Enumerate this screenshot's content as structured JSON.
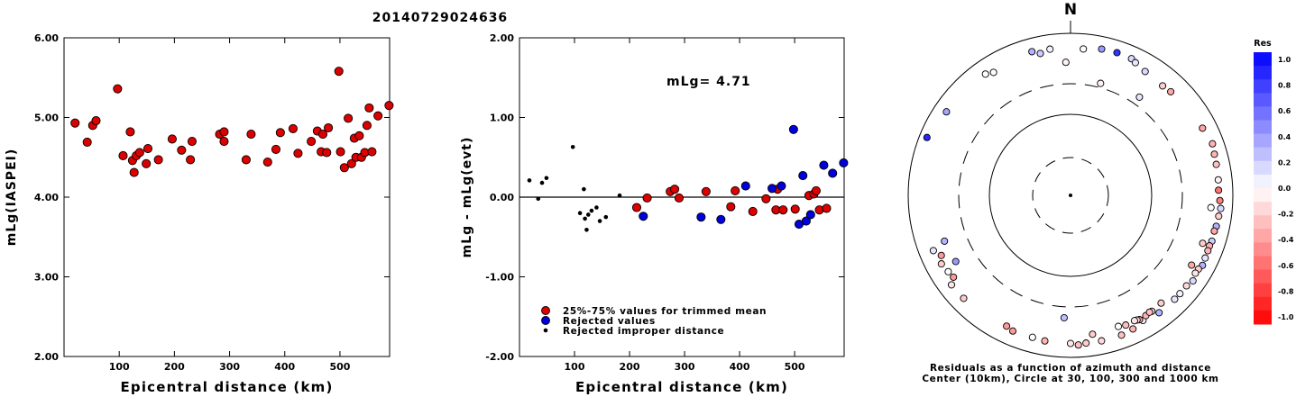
{
  "event_id": "20140729024636",
  "colors": {
    "red": "#dd0000",
    "blue": "#0000dd",
    "black": "#000000"
  },
  "chart_data": [
    {
      "type": "scatter",
      "xlabel": "Epicentral distance (km)",
      "ylabel": "mLg(IASPEI)",
      "xlim": [
        0,
        590
      ],
      "ylim": [
        2.0,
        6.0
      ],
      "x_ticks": [
        "100",
        "200",
        "300",
        "400",
        "500"
      ],
      "y_ticks": [
        "2.00",
        "3.00",
        "4.00",
        "5.00",
        "6.00"
      ],
      "series": [
        {
          "color": "red",
          "points": [
            [
              20,
              4.93
            ],
            [
              42,
              4.69
            ],
            [
              52,
              4.9
            ],
            [
              58,
              4.96
            ],
            [
              97,
              5.36
            ],
            [
              107,
              4.52
            ],
            [
              120,
              4.82
            ],
            [
              124,
              4.46
            ],
            [
              127,
              4.31
            ],
            [
              131,
              4.52
            ],
            [
              137,
              4.56
            ],
            [
              149,
              4.42
            ],
            [
              152,
              4.61
            ],
            [
              171,
              4.47
            ],
            [
              196,
              4.73
            ],
            [
              213,
              4.59
            ],
            [
              229,
              4.47
            ],
            [
              232,
              4.7
            ],
            [
              282,
              4.79
            ],
            [
              290,
              4.7
            ],
            [
              290,
              4.82
            ],
            [
              330,
              4.47
            ],
            [
              339,
              4.79
            ],
            [
              369,
              4.44
            ],
            [
              384,
              4.6
            ],
            [
              392,
              4.81
            ],
            [
              415,
              4.86
            ],
            [
              424,
              4.55
            ],
            [
              448,
              4.7
            ],
            [
              459,
              4.83
            ],
            [
              466,
              4.57
            ],
            [
              469,
              4.79
            ],
            [
              476,
              4.56
            ],
            [
              479,
              4.87
            ],
            [
              498,
              5.58
            ],
            [
              501,
              4.57
            ],
            [
              508,
              4.37
            ],
            [
              515,
              4.99
            ],
            [
              521,
              4.42
            ],
            [
              526,
              4.74
            ],
            [
              529,
              4.5
            ],
            [
              535,
              4.77
            ],
            [
              539,
              4.5
            ],
            [
              545,
              4.56
            ],
            [
              549,
              4.9
            ],
            [
              553,
              5.12
            ],
            [
              558,
              4.57
            ],
            [
              569,
              5.02
            ],
            [
              589,
              5.15
            ]
          ]
        }
      ]
    },
    {
      "type": "scatter",
      "xlabel": "Epicentral distance (km)",
      "ylabel": "mLg - mLg(evt)",
      "annotation": "mLg= 4.71",
      "xlim": [
        0,
        590
      ],
      "ylim": [
        -2.0,
        2.0
      ],
      "x_ticks": [
        "100",
        "200",
        "300",
        "400",
        "500"
      ],
      "y_ticks": [
        "-2.00",
        "-1.00",
        "0.00",
        "1.00",
        "2.00"
      ],
      "reference_line": 0.0,
      "legend": [
        {
          "label": "25%-75% values for trimmed mean",
          "color": "red"
        },
        {
          "label": "Rejected values",
          "color": "blue"
        },
        {
          "label": "Rejected improper distance",
          "color": "black"
        }
      ],
      "series": [
        {
          "color": "red",
          "size": "large",
          "points": [
            [
              213,
              -0.13
            ],
            [
              232,
              -0.01
            ],
            [
              274,
              0.07
            ],
            [
              282,
              0.1
            ],
            [
              290,
              -0.01
            ],
            [
              339,
              0.07
            ],
            [
              384,
              -0.12
            ],
            [
              392,
              0.08
            ],
            [
              424,
              -0.18
            ],
            [
              448,
              -0.02
            ],
            [
              466,
              -0.16
            ],
            [
              469,
              0.1
            ],
            [
              479,
              -0.16
            ],
            [
              501,
              -0.15
            ],
            [
              526,
              0.02
            ],
            [
              535,
              0.04
            ],
            [
              539,
              0.08
            ],
            [
              545,
              -0.16
            ],
            [
              558,
              -0.14
            ]
          ]
        },
        {
          "color": "blue",
          "size": "large",
          "points": [
            [
              225,
              -0.24
            ],
            [
              330,
              -0.25
            ],
            [
              366,
              -0.28
            ],
            [
              411,
              0.14
            ],
            [
              459,
              0.11
            ],
            [
              476,
              0.14
            ],
            [
              498,
              0.85
            ],
            [
              508,
              -0.34
            ],
            [
              515,
              0.27
            ],
            [
              521,
              -0.3
            ],
            [
              529,
              -0.22
            ],
            [
              553,
              0.4
            ],
            [
              569,
              0.3
            ],
            [
              589,
              0.43
            ]
          ]
        },
        {
          "color": "black",
          "size": "small",
          "points": [
            [
              18,
              0.21
            ],
            [
              34,
              -0.02
            ],
            [
              41,
              0.18
            ],
            [
              49,
              0.24
            ],
            [
              97,
              0.63
            ],
            [
              110,
              -0.2
            ],
            [
              117,
              0.1
            ],
            [
              119,
              -0.27
            ],
            [
              122,
              -0.41
            ],
            [
              125,
              -0.22
            ],
            [
              131,
              -0.17
            ],
            [
              140,
              -0.13
            ],
            [
              146,
              -0.3
            ],
            [
              157,
              -0.25
            ],
            [
              182,
              0.02
            ]
          ]
        }
      ]
    },
    {
      "type": "scatter",
      "subtype": "polar",
      "north_label": "N",
      "caption_line1": "Residuals as a function of azimuth and distance",
      "caption_line2": "Center (10km), Circle at 30, 100, 300 and 1000 km",
      "colorbar_title": "Res",
      "colorbar_ticks": [
        "1.0",
        "0.8",
        "0.6",
        "0.4",
        "0.2",
        "0.0",
        "-0.2",
        "-0.4",
        "-0.6",
        "-0.8",
        "-1.0"
      ],
      "stations_az_res": [
        [
          -2,
          -0.05,
          330
        ],
        [
          15,
          -0.05,
          170
        ],
        [
          35,
          0.1,
          198
        ],
        [
          183,
          0.25,
          220
        ],
        [
          240,
          0.4,
          320
        ],
        [
          250,
          0.3,
          340
        ],
        [
          -12,
          0.2,
          520
        ],
        [
          -15,
          0.3,
          600
        ],
        [
          -8,
          0.05,
          575
        ],
        [
          5,
          0.0,
          560
        ],
        [
          12,
          0.4,
          620
        ],
        [
          18,
          0.8,
          630
        ],
        [
          24,
          0.15,
          620
        ],
        [
          26,
          0.1,
          575
        ],
        [
          31,
          0.15,
          510
        ],
        [
          40,
          -0.2,
          480
        ],
        [
          -35,
          0.0,
          585
        ],
        [
          -32,
          0.0,
          520
        ],
        [
          -56,
          0.35,
          615
        ],
        [
          -68,
          0.85,
          750
        ],
        [
          -125,
          -0.4,
          475
        ],
        [
          -122,
          0.0,
          500
        ],
        [
          -115,
          -0.4,
          470
        ],
        [
          63,
          -0.35,
          580
        ],
        [
          70,
          -0.3,
          650
        ],
        [
          74,
          -0.3,
          615
        ],
        [
          78,
          -0.25,
          600
        ],
        [
          84,
          -0.05,
          590
        ],
        [
          88,
          -0.55,
          580
        ],
        [
          92,
          -0.5,
          610
        ],
        [
          95,
          0.15,
          640
        ],
        [
          98,
          -0.2,
          615
        ],
        [
          102,
          0.3,
          600
        ],
        [
          104,
          -0.35,
          580
        ],
        [
          108,
          0.2,
          590
        ],
        [
          110,
          -0.3,
          575
        ],
        [
          112,
          -0.3,
          580
        ],
        [
          115,
          0.1,
          590
        ],
        [
          118,
          0.3,
          610
        ],
        [
          120,
          -0.2,
          570
        ],
        [
          122,
          -0.1,
          560
        ],
        [
          125,
          0.15,
          610
        ],
        [
          128,
          -0.15,
          560
        ],
        [
          132,
          0.05,
          560
        ],
        [
          135,
          0.1,
          560
        ],
        [
          143,
          0.3,
          560
        ],
        [
          150,
          0.05,
          510
        ],
        [
          155,
          -0.3,
          570
        ],
        [
          160,
          -0.25,
          600
        ],
        [
          168,
          -0.15,
          600
        ],
        [
          174,
          -0.2,
          595
        ],
        [
          177,
          -0.25,
          625
        ],
        [
          180,
          -0.1,
          585
        ],
        [
          190,
          -0.3,
          580
        ],
        [
          195,
          0.0,
          560
        ],
        [
          203,
          -0.4,
          570
        ],
        [
          206,
          -0.4,
          530
        ],
        [
          226,
          -0.2,
          590
        ],
        [
          233,
          -0.1,
          600
        ],
        [
          242,
          -0.2,
          540
        ],
        [
          248,
          0.1,
          575
        ],
        [
          140,
          -0.2,
          440
        ],
        [
          145,
          -0.15,
          455
        ],
        [
          148,
          -0.3,
          460
        ],
        [
          151,
          -0.4,
          465
        ],
        [
          146,
          -0.25,
          445
        ],
        [
          152,
          -0.15,
          450
        ],
        [
          153,
          -0.1,
          440
        ],
        [
          157,
          -0.25,
          445
        ],
        [
          160,
          0.0,
          420
        ],
        [
          171,
          -0.2,
          440
        ],
        [
          120,
          -0.35,
          420
        ],
        [
          110,
          -0.2,
          435
        ],
        [
          95,
          0.0,
          440
        ],
        [
          44,
          -0.35,
          500
        ]
      ]
    }
  ]
}
